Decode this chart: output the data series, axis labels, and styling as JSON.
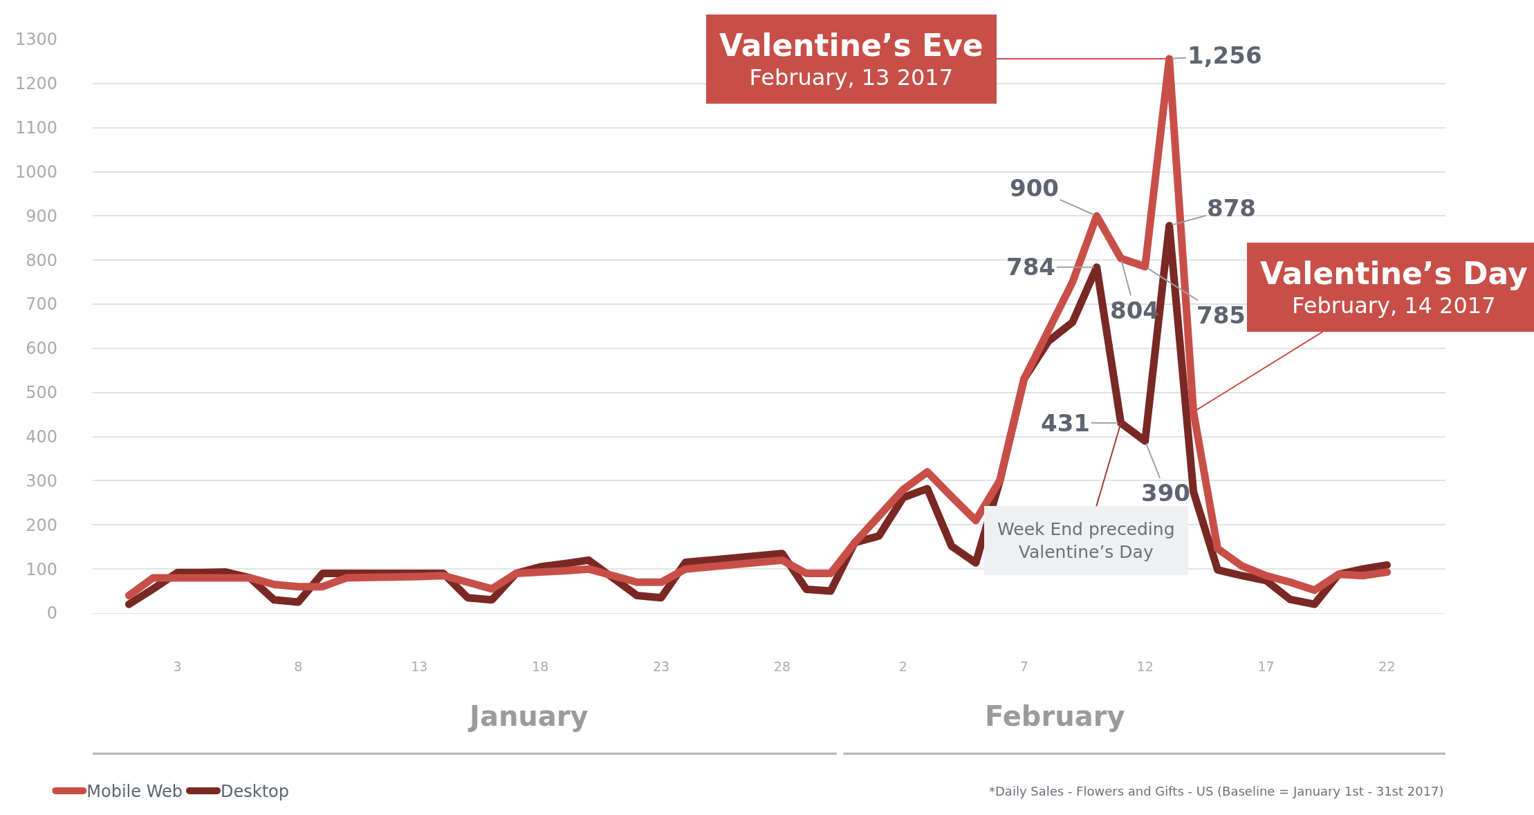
{
  "chart_data": {
    "type": "line",
    "x": [
      "2017-01-01",
      "2017-01-02",
      "2017-01-03",
      "2017-01-04",
      "2017-01-05",
      "2017-01-06",
      "2017-01-07",
      "2017-01-08",
      "2017-01-09",
      "2017-01-10",
      "2017-01-11",
      "2017-01-12",
      "2017-01-13",
      "2017-01-14",
      "2017-01-15",
      "2017-01-16",
      "2017-01-17",
      "2017-01-18",
      "2017-01-19",
      "2017-01-20",
      "2017-01-21",
      "2017-01-22",
      "2017-01-23",
      "2017-01-24",
      "2017-01-25",
      "2017-01-26",
      "2017-01-27",
      "2017-01-28",
      "2017-01-29",
      "2017-01-30",
      "2017-01-31",
      "2017-02-01",
      "2017-02-02",
      "2017-02-03",
      "2017-02-04",
      "2017-02-05",
      "2017-02-06",
      "2017-02-07",
      "2017-02-08",
      "2017-02-09",
      "2017-02-10",
      "2017-02-11",
      "2017-02-12",
      "2017-02-13",
      "2017-02-14",
      "2017-02-15",
      "2017-02-16",
      "2017-02-17",
      "2017-02-18",
      "2017-02-19",
      "2017-02-20",
      "2017-02-21",
      "2017-02-22"
    ],
    "series": [
      {
        "name": "Desktop",
        "color": "#7a2824",
        "values": [
          20,
          55,
          92,
          92,
          93,
          80,
          30,
          25,
          90,
          90,
          90,
          90,
          90,
          90,
          35,
          30,
          90,
          105,
          112,
          120,
          80,
          40,
          35,
          115,
          120,
          125,
          130,
          135,
          54,
          50,
          160,
          175,
          262,
          282,
          152,
          114,
          300,
          531,
          616,
          659,
          784,
          431,
          390,
          878,
          275,
          98,
          85,
          74,
          31,
          20,
          88,
          100,
          109
        ],
        "value_labels": [
          null,
          null,
          null,
          null,
          null,
          null,
          null,
          null,
          null,
          null,
          null,
          null,
          null,
          null,
          null,
          null,
          null,
          null,
          null,
          null,
          null,
          null,
          null,
          null,
          null,
          null,
          null,
          null,
          null,
          null,
          null,
          null,
          null,
          null,
          null,
          null,
          null,
          null,
          null,
          null,
          "784",
          "431",
          "390",
          "878",
          null,
          null,
          null,
          null,
          null,
          null,
          null,
          null,
          null
        ]
      },
      {
        "name": "Mobile Web",
        "color": "#c84f48",
        "values": [
          40,
          80,
          80,
          80,
          80,
          80,
          65,
          60,
          60,
          80,
          81,
          82,
          83,
          85,
          70,
          55,
          90,
          93,
          96,
          100,
          85,
          70,
          70,
          100,
          105,
          110,
          115,
          120,
          90,
          90,
          160,
          220,
          280,
          320,
          264,
          210,
          301,
          531,
          640,
          750,
          900,
          804,
          785,
          1256,
          456,
          146,
          107,
          85,
          70,
          52,
          88,
          85,
          93
        ],
        "value_labels": [
          null,
          null,
          null,
          null,
          null,
          null,
          null,
          null,
          null,
          null,
          null,
          null,
          null,
          null,
          null,
          null,
          null,
          null,
          null,
          null,
          null,
          null,
          null,
          null,
          null,
          null,
          null,
          null,
          null,
          null,
          null,
          null,
          null,
          null,
          null,
          null,
          null,
          null,
          null,
          null,
          "900",
          "804",
          "785",
          "1,256",
          null,
          null,
          null,
          null,
          null,
          null,
          null,
          null,
          null
        ]
      }
    ],
    "xlim": [
      "2016-12-30T12:00",
      "2017-02-24T10:00"
    ],
    "xticks": [
      {
        "value": "2017-01-03",
        "label": "3"
      },
      {
        "value": "2017-01-08",
        "label": "8"
      },
      {
        "value": "2017-01-13",
        "label": "13"
      },
      {
        "value": "2017-01-18",
        "label": "18"
      },
      {
        "value": "2017-01-23",
        "label": "23"
      },
      {
        "value": "2017-01-28",
        "label": "28"
      },
      {
        "value": "2017-02-02",
        "label": "2"
      },
      {
        "value": "2017-02-07",
        "label": "7"
      },
      {
        "value": "2017-02-12",
        "label": "12"
      },
      {
        "value": "2017-02-17",
        "label": "17"
      },
      {
        "value": "2017-02-22",
        "label": "22"
      }
    ],
    "ylim": [
      0,
      1300
    ],
    "yticks": [
      0,
      100,
      200,
      300,
      400,
      500,
      600,
      700,
      800,
      900,
      1000,
      1100,
      1200,
      1300
    ],
    "grid": "y",
    "legend": "bottom left",
    "marker": "none",
    "line_style": "solid",
    "annotations": [
      {
        "text": "Valentine’s Eve\nFebruary, 13 2017",
        "x": "2017-02-13",
        "y": 1256
      },
      {
        "text": "Valentine’s Day\nFebruary, 14 2017",
        "x": "2017-02-14",
        "y": 456
      },
      {
        "text": "Week End preceding\nValentine’s Day",
        "x": "2017-02-11",
        "y": 431
      },
      "January",
      "February",
      "*Daily Sales - Flowers and Gifts - US (Baseline = January 1st - 31st 2017)"
    ]
  }
}
